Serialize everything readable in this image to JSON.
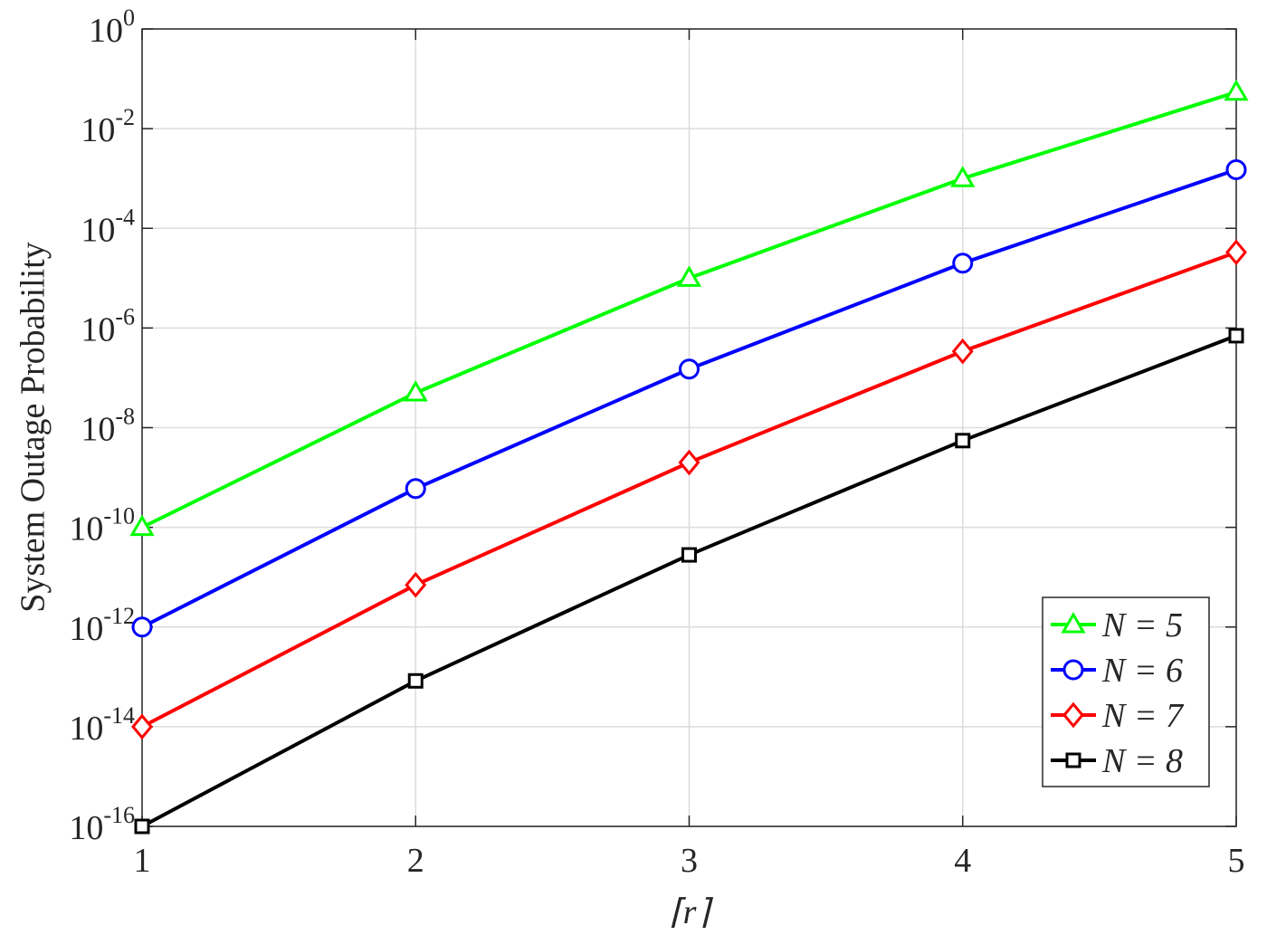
{
  "chart_data": {
    "type": "line",
    "y_label": "System Outage Probability",
    "x_label": "⌈r⌉",
    "x": [
      1,
      2,
      3,
      4,
      5
    ],
    "xlim": [
      1,
      5
    ],
    "xticks": [
      1,
      2,
      3,
      4,
      5
    ],
    "ylim": [
      1e-16,
      1
    ],
    "log_y": true,
    "yticks": [
      {
        "value": 1e-16,
        "label": "10^-16"
      },
      {
        "value": 1e-14,
        "label": "10^-14"
      },
      {
        "value": 1e-12,
        "label": "10^-12"
      },
      {
        "value": 1e-10,
        "label": "10^-10"
      },
      {
        "value": 1e-08,
        "label": "10^-8"
      },
      {
        "value": 1e-06,
        "label": "10^-6"
      },
      {
        "value": 0.0001,
        "label": "10^-4"
      },
      {
        "value": 0.01,
        "label": "10^-2"
      },
      {
        "value": 1,
        "label": "10^0"
      }
    ],
    "grid": true,
    "legend": "lower right",
    "series": [
      {
        "name": "N = 5",
        "color": "#00ff00",
        "marker": "triangle",
        "values": [
          1e-10,
          5e-08,
          1e-05,
          0.001,
          0.054
        ]
      },
      {
        "name": "N = 6",
        "color": "#0000ff",
        "marker": "circle",
        "values": [
          1e-12,
          6e-10,
          1.5e-07,
          2e-05,
          0.0015
        ]
      },
      {
        "name": "N = 7",
        "color": "#ff0000",
        "marker": "diamond",
        "values": [
          1e-14,
          7e-12,
          2e-09,
          3.4e-07,
          3.3e-05
        ]
      },
      {
        "name": "N = 8",
        "color": "#000000",
        "marker": "square",
        "values": [
          1e-16,
          8.3e-14,
          2.8e-11,
          5.5e-09,
          7e-07
        ]
      }
    ]
  }
}
